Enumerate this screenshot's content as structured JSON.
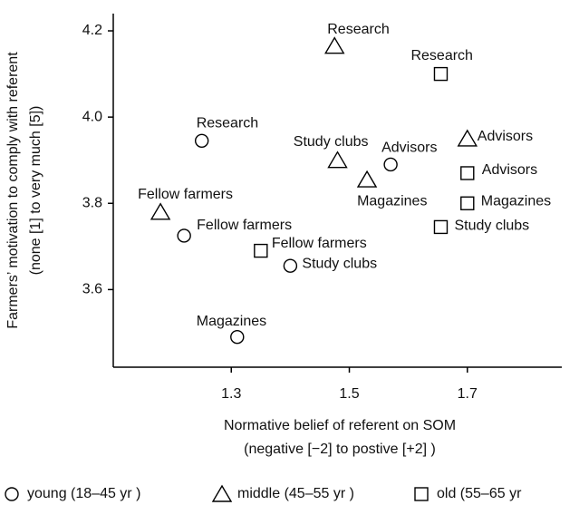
{
  "chart_data": {
    "type": "scatter",
    "xlabel": [
      "Normative belief of referent on SOM",
      "(negative [−2] to postive [+2]   )"
    ],
    "ylabel": [
      "Farmers’ motivation to comply with referent",
      "(none [1] to very much [5])"
    ],
    "xlim": [
      1.1,
      1.86
    ],
    "xticks": [
      1.3,
      1.5,
      1.7
    ],
    "ylim": [
      3.42,
      4.24
    ],
    "yticks": [
      3.6,
      3.8,
      {
        "value": 4.0,
        "label": "4.0"
      },
      4.2
    ],
    "series": [
      {
        "name": "young (18–45 yr )",
        "marker": "circle",
        "color": "#000000",
        "labels": [
          "Research",
          "Fellow farmers",
          "Study clubs",
          "Magazines",
          "Advisors"
        ],
        "x": [
          1.25,
          1.22,
          1.4,
          1.31,
          1.57
        ],
        "values": [
          3.945,
          3.725,
          3.655,
          3.49,
          3.89
        ]
      },
      {
        "name": "middle (45–55 yr )",
        "marker": "triangle",
        "color": "#000000",
        "labels": [
          "Research",
          "Study clubs",
          "Magazines",
          "Fellow farmers",
          "Advisors"
        ],
        "x": [
          1.475,
          1.48,
          1.53,
          1.18,
          1.7
        ],
        "values": [
          4.165,
          3.9,
          3.855,
          3.78,
          3.95
        ]
      },
      {
        "name": "old (55–65 yr",
        "marker": "square",
        "color": "#000000",
        "labels": [
          "Research",
          "Advisors",
          "Magazines",
          "Study clubs",
          "Fellow farmers"
        ],
        "x": [
          1.655,
          1.7,
          1.7,
          1.655,
          1.35
        ],
        "values": [
          4.1,
          3.87,
          3.8,
          3.745,
          3.69
        ]
      }
    ]
  }
}
